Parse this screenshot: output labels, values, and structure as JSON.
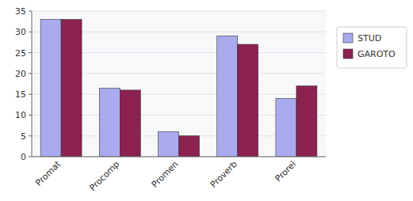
{
  "chart_data": {
    "type": "bar",
    "categories": [
      "Promat",
      "Procomp",
      "Promen",
      "Proverb",
      "Prorel"
    ],
    "series": [
      {
        "name": "STUD",
        "color": "#AAAAEE",
        "values": [
          33,
          16.5,
          6,
          29,
          14
        ]
      },
      {
        "name": "GAROTO",
        "color": "#8B2252",
        "values": [
          33,
          16,
          5,
          27,
          17
        ]
      }
    ],
    "ylim": [
      0,
      35
    ],
    "yticks": [
      0,
      5,
      10,
      15,
      20,
      25,
      30,
      35
    ],
    "grid": true,
    "legend": "right"
  }
}
